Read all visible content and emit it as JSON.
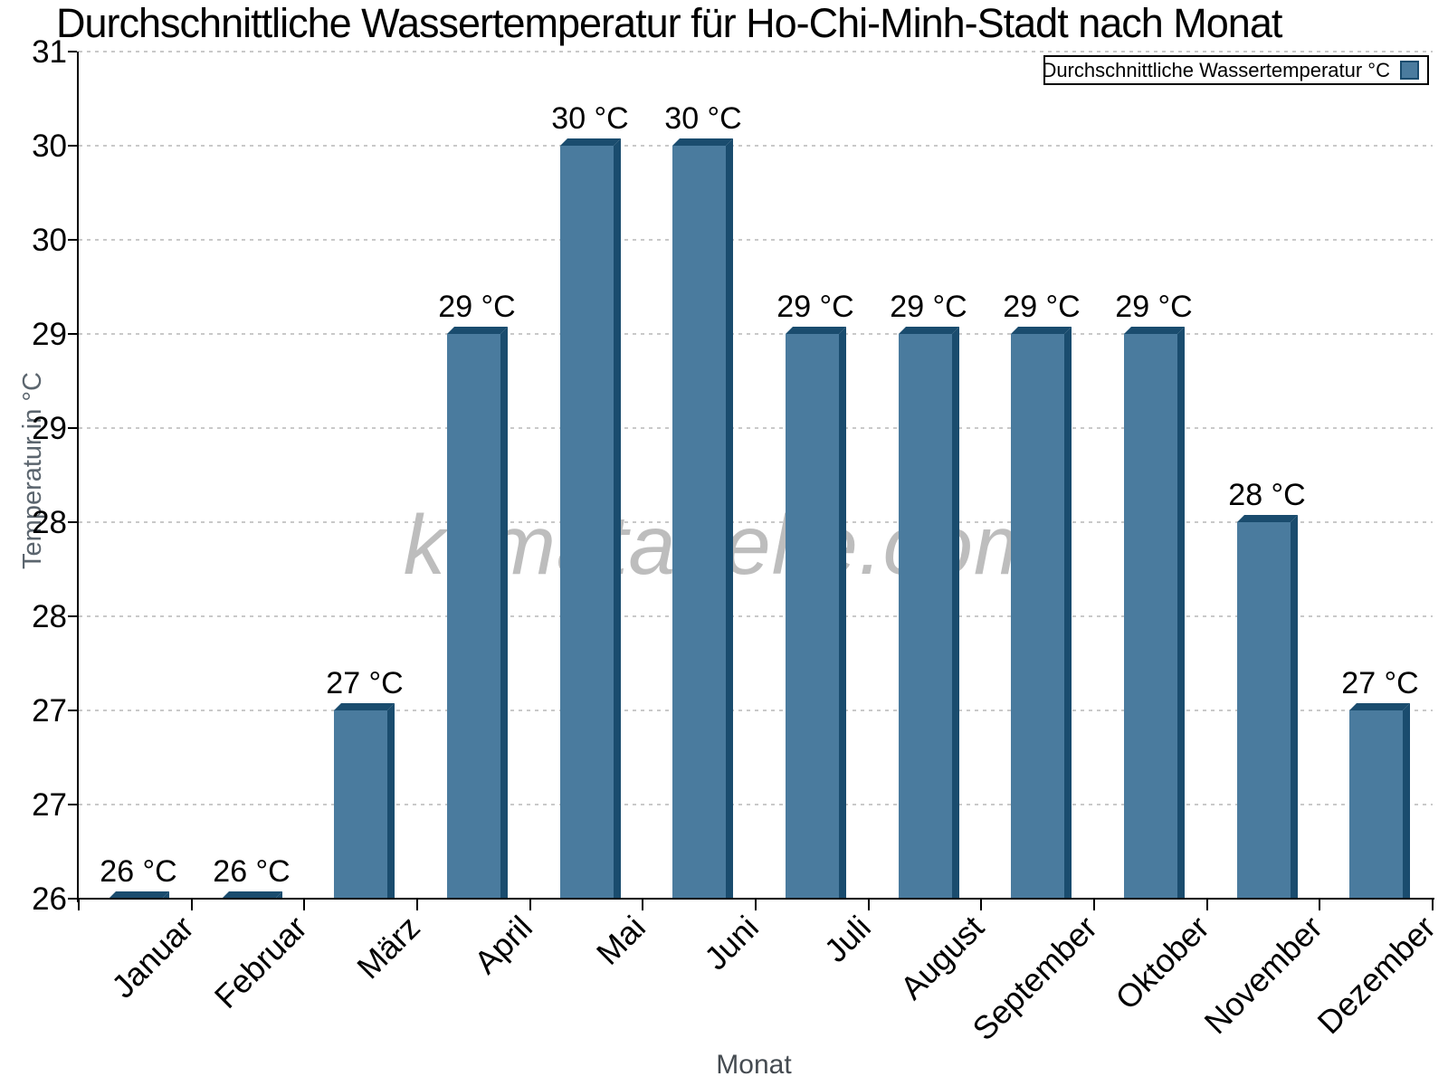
{
  "title": "Durchschnittliche Wassertemperatur für Ho-Chi-Minh-Stadt nach Monat",
  "watermark": "klimatabelle.com",
  "legend": {
    "label": "Durchschnittliche Wassertemperatur °C"
  },
  "axes": {
    "x_title": "Monat",
    "y_title": "Temperatur in °C",
    "y_tick_labels_top_to_bottom": [
      "31",
      "30",
      "30",
      "29",
      "29",
      "28",
      "28",
      "27",
      "27",
      "26"
    ]
  },
  "chart_data": {
    "type": "bar",
    "title": "Durchschnittliche Wassertemperatur für Ho-Chi-Minh-Stadt nach Monat",
    "xlabel": "Monat",
    "ylabel": "Temperatur in °C",
    "categories": [
      "Januar",
      "Februar",
      "März",
      "April",
      "Mai",
      "Juni",
      "Juli",
      "August",
      "September",
      "Oktober",
      "November",
      "Dezember"
    ],
    "values": [
      26,
      26,
      27,
      29,
      30,
      30,
      29,
      29,
      29,
      29,
      28,
      27
    ],
    "value_labels": [
      "26 °C",
      "26 °C",
      "27 °C",
      "29 °C",
      "30 °C",
      "30 °C",
      "29 °C",
      "29 °C",
      "29 °C",
      "29 °C",
      "28 °C",
      "27 °C"
    ],
    "series_name": "Durchschnittliche Wassertemperatur °C",
    "ylim": [
      26,
      30.5
    ],
    "y_tick_interval": 0.5,
    "grid": "horizontal-dotted",
    "legend_position": "top-right",
    "bar_style": "3d-oblique"
  },
  "colors": {
    "bar_face": "#4A7B9E",
    "bar_edge": "#1A4C6E",
    "grid": "#C9C9C9",
    "axis": "#000000",
    "text": "#000000",
    "muted_text": "#5B656E",
    "watermark": "#BDBDBD",
    "background": "#FFFFFF"
  }
}
